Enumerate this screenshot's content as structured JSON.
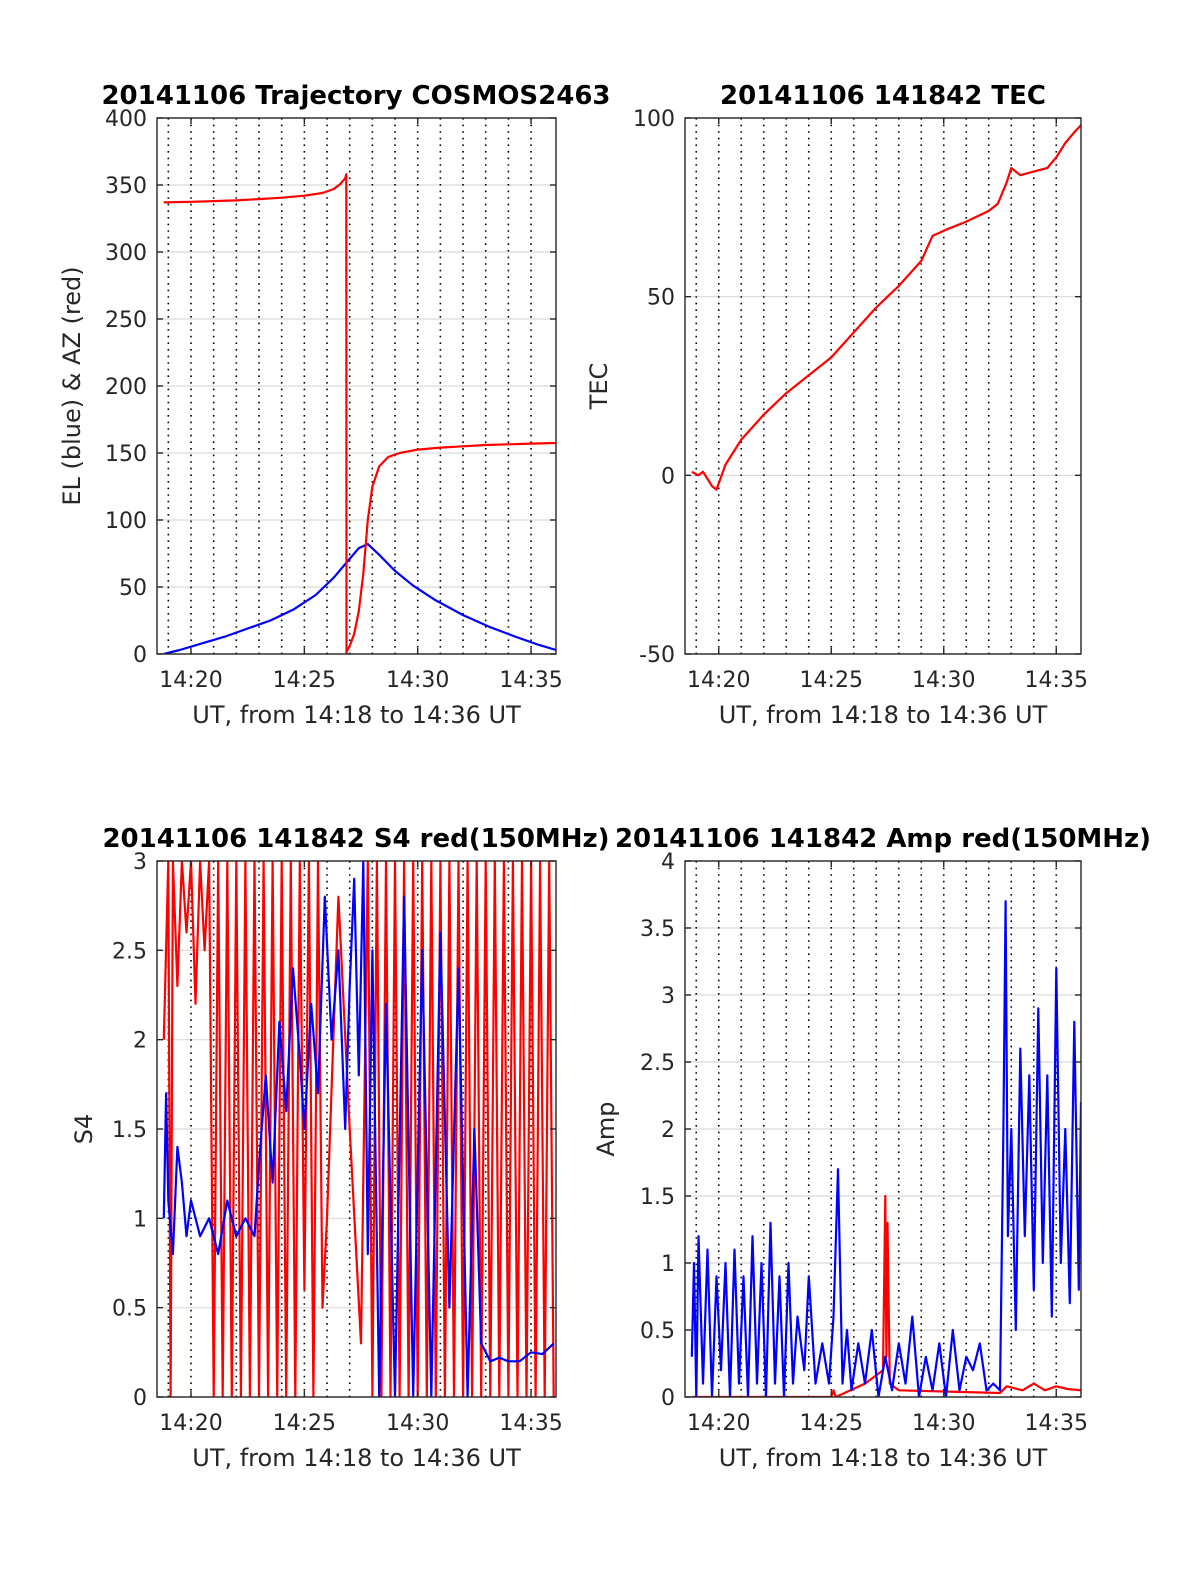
{
  "figure": {
    "background": "#ffffff"
  },
  "colors": {
    "red": "#ff0000",
    "blue": "#0000ff",
    "grid": "#d9d9d9",
    "vgrid": "#000000",
    "axis": "#262626"
  },
  "chart_data": [
    {
      "id": "p1",
      "type": "line",
      "title": "20141106 Trajectory COSMOS2463",
      "xlabel": "UT, from 14:18 to 14:36 UT",
      "ylabel": "EL (blue) & AZ (red)",
      "xlim": [
        18.5,
        36.1
      ],
      "ylim": [
        0,
        400
      ],
      "xticks": [
        20,
        25,
        30,
        35
      ],
      "xtick_labels": [
        "14:20",
        "14:25",
        "14:30",
        "14:35"
      ],
      "yticks": [
        0,
        50,
        100,
        150,
        200,
        250,
        300,
        350,
        400
      ],
      "ytick_labels": [
        "0",
        "50",
        "100",
        "150",
        "200",
        "250",
        "300",
        "350",
        "400"
      ],
      "vgrid_minutes": [
        19,
        20,
        21,
        22,
        23,
        24,
        25,
        26,
        27,
        28,
        29,
        30,
        31,
        32,
        33,
        34,
        35
      ],
      "grid": true,
      "series": [
        {
          "color": "#0000ff",
          "x": [
            18.8,
            19.5,
            20.5,
            21.5,
            22.5,
            23.5,
            24.5,
            25.5,
            26.3,
            26.9,
            27.4,
            27.8,
            28.3,
            29.0,
            29.8,
            30.8,
            32.0,
            33.2,
            34.3,
            35.3,
            36.1
          ],
          "y": [
            0,
            3,
            8,
            13,
            19,
            25,
            33,
            44,
            57,
            69,
            79,
            82,
            74,
            62,
            51,
            40,
            29,
            20,
            13,
            7,
            3
          ]
        },
        {
          "color": "#ff0000",
          "x": [
            18.8,
            20,
            21,
            22,
            23,
            24,
            25,
            25.8,
            26.3,
            26.6,
            26.8,
            26.85,
            26.86,
            26.87,
            27.0,
            27.2,
            27.4,
            27.6,
            27.8,
            28.0,
            28.3,
            28.7,
            29.2,
            30.0,
            31.0,
            32.0,
            33.0,
            34.0,
            35.0,
            36.1
          ],
          "y": [
            337,
            337.5,
            338,
            338.5,
            339.5,
            340.5,
            342,
            344,
            347,
            351,
            355,
            358,
            0,
            2,
            6,
            15,
            32,
            60,
            100,
            125,
            140,
            147,
            150,
            152.5,
            154,
            155,
            156,
            156.5,
            157,
            157.5
          ]
        }
      ]
    },
    {
      "id": "p2",
      "type": "line",
      "title": "20141106 141842 TEC",
      "xlabel": "UT, from 14:18 to 14:36 UT",
      "ylabel": "TEC",
      "xlim": [
        18.5,
        36.1
      ],
      "ylim": [
        -50,
        100
      ],
      "xticks": [
        20,
        25,
        30,
        35
      ],
      "xtick_labels": [
        "14:20",
        "14:25",
        "14:30",
        "14:35"
      ],
      "yticks": [
        -50,
        0,
        50,
        100
      ],
      "ytick_labels": [
        "-50",
        "0",
        "50",
        "100"
      ],
      "vgrid_minutes": [
        19,
        20,
        21,
        22,
        23,
        24,
        25,
        26,
        27,
        28,
        29,
        30,
        31,
        32,
        33,
        34,
        35
      ],
      "grid": true,
      "series": [
        {
          "color": "#ff0000",
          "x": [
            18.8,
            19.1,
            19.3,
            19.5,
            19.7,
            19.9,
            20.3,
            21.0,
            22.0,
            23.0,
            24.0,
            25.0,
            26.0,
            27.0,
            28.0,
            29.0,
            29.5,
            30.2,
            31.0,
            32.0,
            32.4,
            32.8,
            33.0,
            33.4,
            34.0,
            34.6,
            35.0,
            35.4,
            35.8,
            36.1
          ],
          "y": [
            1,
            0,
            1,
            -1,
            -3,
            -4,
            3,
            10,
            17,
            23,
            28,
            33,
            40,
            47,
            53,
            60,
            67,
            69,
            71,
            74,
            76,
            82,
            86,
            84,
            85,
            86,
            89,
            93,
            96,
            98
          ]
        }
      ]
    },
    {
      "id": "p3",
      "type": "line",
      "title": "20141106 141842 S4 red(150MHz)",
      "xlabel": "UT, from 14:18 to 14:36 UT",
      "ylabel": "S4",
      "xlim": [
        18.5,
        36.1
      ],
      "ylim": [
        0,
        3
      ],
      "xticks": [
        20,
        25,
        30,
        35
      ],
      "xtick_labels": [
        "14:20",
        "14:25",
        "14:30",
        "14:35"
      ],
      "yticks": [
        0,
        0.5,
        1,
        1.5,
        2,
        2.5,
        3
      ],
      "ytick_labels": [
        "0",
        "0.5",
        "1",
        "1.5",
        "2",
        "2.5",
        "3"
      ],
      "vgrid_minutes": [
        19,
        20,
        21,
        22,
        23,
        24,
        25,
        26,
        27,
        28,
        29,
        30,
        31,
        32,
        33,
        34,
        35
      ],
      "grid": true,
      "series": [
        {
          "color": "#ff0000",
          "x": [
            18.8,
            19.0,
            19.1,
            19.2,
            19.4,
            19.6,
            19.8,
            20.0,
            20.2,
            20.4,
            20.6,
            20.8,
            21.0,
            21.2,
            21.4,
            21.6,
            21.8,
            22.0,
            22.2,
            22.4,
            22.6,
            22.8,
            23.0,
            23.2,
            23.4,
            23.6,
            23.8,
            24.0,
            24.2,
            24.4,
            24.6,
            24.8,
            25.0,
            25.2,
            25.4,
            25.6,
            25.8,
            26.0,
            26.5,
            27.0,
            27.5,
            27.8,
            28.0,
            28.2,
            28.4,
            28.6,
            28.8,
            29.0,
            29.2,
            29.4,
            29.6,
            29.8,
            30.0,
            30.2,
            30.4,
            30.6,
            30.8,
            31.0,
            31.2,
            31.4,
            31.6,
            31.8,
            32.0,
            32.2,
            32.4,
            32.6,
            32.8,
            33.0,
            33.2,
            33.4,
            33.6,
            33.8,
            34.0,
            34.2,
            34.4,
            34.6,
            34.8,
            35.0,
            35.2,
            35.4,
            35.6,
            35.8,
            36.0
          ],
          "y": [
            2.0,
            3.0,
            0,
            3.0,
            2.3,
            3.0,
            2.6,
            3.0,
            2.2,
            3.0,
            2.5,
            3.0,
            0,
            3.0,
            0,
            3.0,
            0,
            3.0,
            0,
            3.0,
            0,
            3.0,
            0,
            3.0,
            0,
            3.0,
            0,
            3.0,
            0,
            3.0,
            0,
            3.0,
            0.6,
            3.0,
            0,
            3.0,
            0.5,
            1.0,
            2.8,
            1.5,
            0.3,
            3.0,
            0,
            3.0,
            0,
            3.0,
            0,
            3.0,
            0,
            3.0,
            0,
            3.0,
            0,
            3.0,
            0,
            3.0,
            0,
            3.0,
            0,
            3.0,
            0,
            3.0,
            0,
            3.0,
            0,
            3.0,
            0,
            3.0,
            0,
            3.0,
            0,
            3.0,
            0,
            3.0,
            0,
            3.0,
            0,
            3.0,
            0,
            3.0,
            0,
            3.0,
            0
          ]
        },
        {
          "color": "#0000ff",
          "x": [
            18.8,
            18.9,
            19.0,
            19.2,
            19.4,
            19.6,
            19.8,
            20.0,
            20.4,
            20.8,
            21.2,
            21.6,
            22.0,
            22.4,
            22.8,
            23.0,
            23.3,
            23.6,
            23.9,
            24.2,
            24.5,
            24.8,
            25.0,
            25.3,
            25.6,
            25.9,
            26.2,
            26.5,
            26.8,
            27.0,
            27.2,
            27.4,
            27.6,
            27.8,
            28.0,
            28.3,
            28.6,
            29.0,
            29.4,
            29.8,
            30.2,
            30.6,
            31.0,
            31.4,
            31.8,
            32.2,
            32.5,
            32.8,
            33.2,
            33.6,
            34.0,
            34.5,
            35.0,
            35.5,
            36.0
          ],
          "y": [
            1.0,
            1.7,
            1.1,
            0.8,
            1.4,
            1.2,
            0.9,
            1.1,
            0.9,
            1.0,
            0.8,
            1.1,
            0.9,
            1.0,
            0.9,
            1.3,
            1.8,
            1.2,
            2.1,
            1.6,
            2.4,
            1.9,
            1.5,
            2.2,
            1.7,
            2.8,
            2.0,
            2.5,
            1.5,
            2.3,
            2.9,
            1.8,
            3.0,
            0.8,
            2.5,
            0,
            2.2,
            0,
            2.8,
            0,
            2.5,
            0,
            2.6,
            0.5,
            2.4,
            0,
            1.5,
            0.3,
            0.2,
            0.22,
            0.2,
            0.2,
            0.25,
            0.24,
            0.3
          ]
        }
      ]
    },
    {
      "id": "p4",
      "type": "line",
      "title": "20141106 141842 Amp red(150MHz)",
      "xlabel": "UT, from 14:18 to 14:36 UT",
      "ylabel": "Amp",
      "xlim": [
        18.5,
        36.1
      ],
      "ylim": [
        0,
        4
      ],
      "xticks": [
        20,
        25,
        30,
        35
      ],
      "xtick_labels": [
        "14:20",
        "14:25",
        "14:30",
        "14:35"
      ],
      "yticks": [
        0,
        0.5,
        1,
        1.5,
        2,
        2.5,
        3,
        3.5,
        4
      ],
      "ytick_labels": [
        "0",
        "0.5",
        "1",
        "1.5",
        "2",
        "2.5",
        "3",
        "3.5",
        "4"
      ],
      "vgrid_minutes": [
        19,
        20,
        21,
        22,
        23,
        24,
        25,
        26,
        27,
        28,
        29,
        30,
        31,
        32,
        33,
        34,
        35
      ],
      "grid": true,
      "series": [
        {
          "color": "#ff0000",
          "x": [
            18.8,
            25.0,
            25.1,
            25.2,
            26.5,
            27.3,
            27.4,
            27.45,
            27.5,
            27.6,
            28.0,
            32.5,
            32.8,
            33.5,
            34.0,
            34.5,
            35.0,
            35.5,
            36.1
          ],
          "y": [
            0,
            0,
            0.05,
            0,
            0.1,
            0.2,
            1.5,
            0.3,
            1.3,
            0.1,
            0.05,
            0.03,
            0.08,
            0.05,
            0.1,
            0.05,
            0.08,
            0.06,
            0.05
          ]
        },
        {
          "color": "#0000ff",
          "x": [
            18.8,
            18.9,
            19.0,
            19.1,
            19.3,
            19.5,
            19.7,
            19.9,
            20.1,
            20.3,
            20.5,
            20.7,
            20.9,
            21.1,
            21.3,
            21.5,
            21.7,
            21.9,
            22.1,
            22.3,
            22.5,
            22.7,
            22.9,
            23.1,
            23.3,
            23.5,
            23.8,
            24.0,
            24.3,
            24.6,
            24.9,
            25.1,
            25.3,
            25.5,
            25.7,
            25.9,
            26.2,
            26.5,
            26.8,
            27.1,
            27.4,
            27.7,
            28.0,
            28.3,
            28.6,
            28.9,
            29.2,
            29.5,
            29.8,
            30.1,
            30.4,
            30.7,
            31.0,
            31.3,
            31.6,
            31.9,
            32.2,
            32.5,
            32.65,
            32.75,
            32.85,
            33.0,
            33.2,
            33.4,
            33.6,
            33.8,
            34.0,
            34.2,
            34.4,
            34.6,
            34.8,
            35.0,
            35.2,
            35.4,
            35.6,
            35.8,
            36.0,
            36.1
          ],
          "y": [
            0.3,
            1.0,
            0,
            1.2,
            0.1,
            1.1,
            0,
            0.9,
            0.2,
            1.0,
            0,
            1.1,
            0.1,
            0.9,
            0,
            1.2,
            0.1,
            1.0,
            0,
            1.3,
            0.1,
            0.9,
            0,
            1.0,
            0.1,
            0.6,
            0.2,
            0.9,
            0.1,
            0.4,
            0.1,
            0.6,
            1.7,
            0.1,
            0.5,
            0.05,
            0.4,
            0.1,
            0.5,
            0,
            0.3,
            0.05,
            0.4,
            0.1,
            0.6,
            0,
            0.3,
            0.05,
            0.4,
            0,
            0.5,
            0.05,
            0.3,
            0.2,
            0.4,
            0.05,
            0.1,
            0.05,
            2.0,
            3.7,
            1.2,
            2.0,
            0.5,
            2.6,
            1.2,
            2.4,
            0.8,
            2.9,
            1.0,
            2.4,
            0.6,
            3.2,
            1.0,
            2.0,
            0.7,
            2.8,
            0.8,
            2.2
          ]
        }
      ]
    }
  ]
}
